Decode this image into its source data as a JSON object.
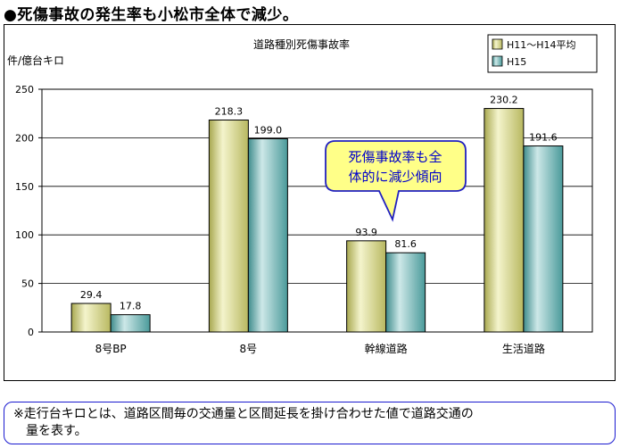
{
  "headline": "●死傷事故の発生率も小松市全体で減少。",
  "chart_data": {
    "type": "bar",
    "title": "道路種別死傷事故率",
    "ylabel": "件/億台キロ",
    "xlabel": "",
    "categories": [
      "8号BP",
      "8号",
      "幹線道路",
      "生活道路"
    ],
    "series": [
      {
        "name": "H11～H14平均",
        "values": [
          29.4,
          218.3,
          93.9,
          230.2
        ],
        "labels": [
          "29.4",
          "218.3",
          "93.9",
          "230.2"
        ]
      },
      {
        "name": "H15",
        "values": [
          17.8,
          199.0,
          81.6,
          191.6
        ],
        "labels": [
          "17.8",
          "199.0",
          "81.6",
          "191.6"
        ]
      }
    ],
    "ylim": [
      0,
      250
    ],
    "yticks": [
      0,
      50,
      100,
      150,
      200,
      250
    ],
    "grid": true,
    "legend": "top-right",
    "colors": {
      "series1": "#d8d880",
      "series1_light": "#f2f2c8",
      "series2": "#5aa8a8",
      "series2_light": "#bfe0e0",
      "callout_fill": "#ffff88",
      "callout_border": "#2020c0",
      "callout_text": "#0000cc"
    },
    "callout": {
      "lines": [
        "死傷事故率も全",
        "体的に減少傾向"
      ]
    }
  },
  "footnote": {
    "lines": [
      "※走行台キロとは、道路区間毎の交通量と区間延長を掛け合わせた値で道路交通の",
      "　量を表す。"
    ]
  }
}
